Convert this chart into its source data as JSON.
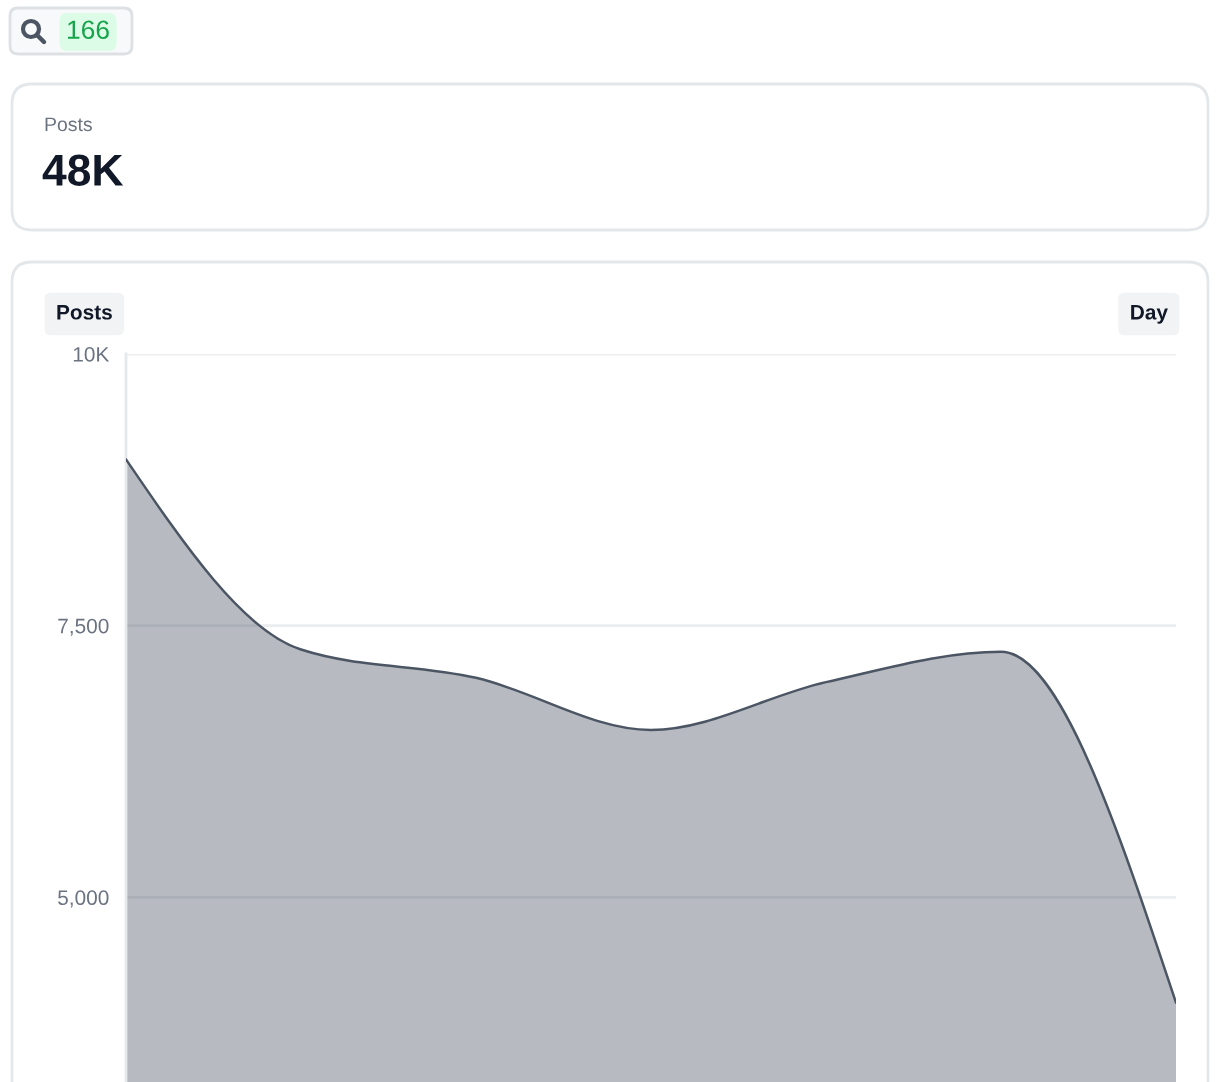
{
  "chart_data": [
    {
      "type": "other",
      "annotations": [
        "166"
      ]
    },
    {
      "type": "other",
      "title": "Posts",
      "annotations": [
        "48K"
      ]
    },
    {
      "type": "area",
      "title": "Posts",
      "annotations": [
        "Day"
      ],
      "categories": [
        null,
        null,
        null,
        null,
        null,
        null,
        null
      ],
      "series": [
        {
          "color": "#4b5563",
          "values": [
            9030,
            7280,
            7020,
            6540,
            6980,
            7260,
            4030
          ]
        }
      ],
      "ylim": [
        3300,
        10000
      ],
      "yticks": [
        {
          "value": 5000,
          "label": "5,000"
        },
        {
          "value": 7500,
          "label": "7,500"
        },
        {
          "value": 10000,
          "label": "10K"
        }
      ],
      "grid": "y",
      "tick_labels": "y"
    }
  ]
}
